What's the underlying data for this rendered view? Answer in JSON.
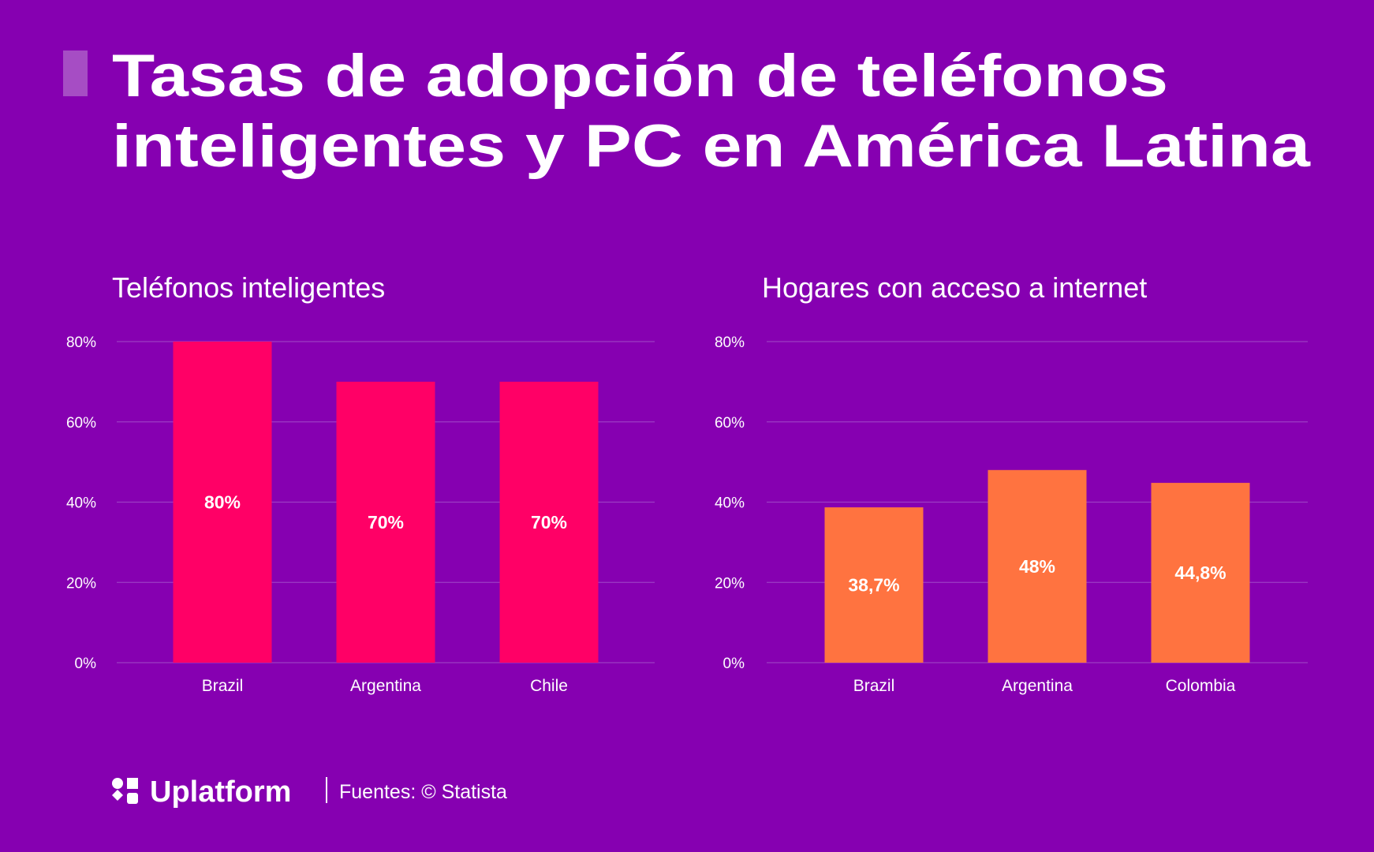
{
  "title": [
    "Tasas de adopción de teléfonos",
    "inteligentes y PC en América Latina"
  ],
  "footer": {
    "brand": "Uplatform",
    "source": "Fuentes: © Statista"
  },
  "chart_data": [
    {
      "type": "bar",
      "title": "Teléfonos inteligentes",
      "categories": [
        "Brazil",
        "Argentina",
        "Chile"
      ],
      "values": [
        80,
        70,
        70
      ],
      "value_labels": [
        "80%",
        "70%",
        "70%"
      ],
      "color": "#ff0066",
      "ylim": [
        0,
        80
      ],
      "yticks": [
        {
          "value": 0,
          "label": "0%"
        },
        {
          "value": 20,
          "label": "20%"
        },
        {
          "value": 40,
          "label": "40%"
        },
        {
          "value": 60,
          "label": "60%"
        },
        {
          "value": 80,
          "label": "80%"
        }
      ],
      "grid": true
    },
    {
      "type": "bar",
      "title": "Hogares con acceso a internet",
      "categories": [
        "Brazil",
        "Argentina",
        "Colombia"
      ],
      "values": [
        38.7,
        48,
        44.8
      ],
      "value_labels": [
        "38,7%",
        "48%",
        "44,8%"
      ],
      "color": "#ff7340",
      "ylim": [
        0,
        80
      ],
      "yticks": [
        {
          "value": 0,
          "label": "0%"
        },
        {
          "value": 20,
          "label": "20%"
        },
        {
          "value": 40,
          "label": "40%"
        },
        {
          "value": 60,
          "label": "60%"
        },
        {
          "value": 80,
          "label": "80%"
        }
      ],
      "grid": true
    }
  ]
}
